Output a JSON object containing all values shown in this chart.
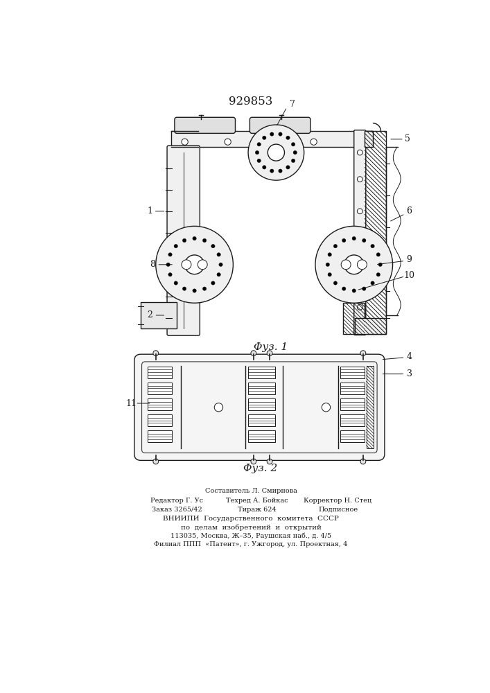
{
  "patent_number": "929853",
  "fig1_caption": "Φуз. 1",
  "fig2_caption": "Φуз. 2",
  "background_color": "#ffffff",
  "line_color": "#1a1a1a",
  "footer_col1_line1": "Редактор Г. Ус",
  "footer_col1_line2": "Заказ 3265/42",
  "footer_col2_line0": "Составитель Л. Смирнова",
  "footer_col2_line1": "Техред А. Бойкас",
  "footer_col2_line2": "Тираж 624",
  "footer_col3_line1": "Корректор Н. Стец",
  "footer_col3_line2": "Подписное",
  "footer_line3": "ВНИИПИ  Государственного  комитета  СССР",
  "footer_line4": "по  делам  изобретений  и  открытий",
  "footer_line5": "113035, Москва, Ж–35, Раушская наб., д. 4/5",
  "footer_line6": "Филиал ППП  «Патент», г. Ужгород, ул. Проектная, 4"
}
